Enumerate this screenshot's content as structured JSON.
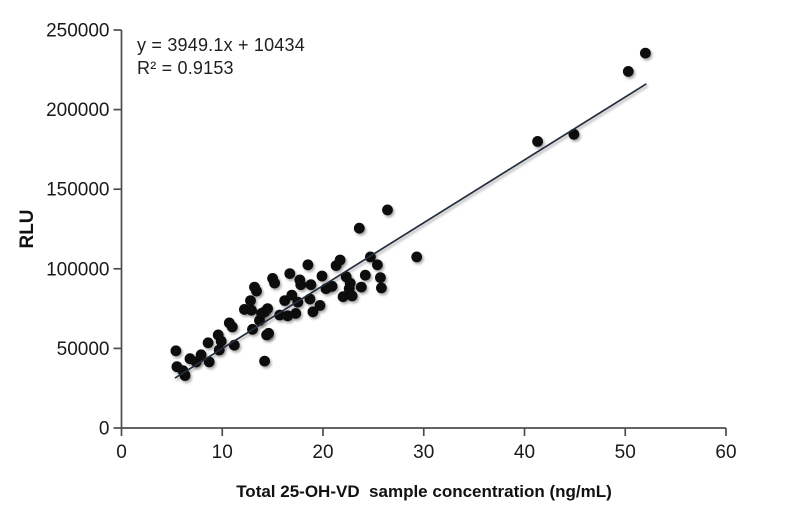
{
  "chart_data": {
    "type": "scatter",
    "title": "",
    "xlabel": "Total 25-OH-VD  sample concentration (ng/mL)",
    "ylabel": "RLU",
    "xlim": [
      0,
      60
    ],
    "ylim": [
      0,
      250000
    ],
    "x_ticks": [
      0,
      10,
      20,
      30,
      40,
      50,
      60
    ],
    "y_ticks": [
      0,
      50000,
      100000,
      150000,
      200000,
      250000
    ],
    "grid": false,
    "legend": "none",
    "point_color": "#0a0a0a",
    "axis_color": "#4d4d4d",
    "points": [
      [
        5.4,
        48500
      ],
      [
        5.5,
        38500
      ],
      [
        6.1,
        36000
      ],
      [
        6.3,
        33000
      ],
      [
        6.8,
        43500
      ],
      [
        7.4,
        41500
      ],
      [
        7.9,
        46000
      ],
      [
        8.6,
        53500
      ],
      [
        8.7,
        41500
      ],
      [
        9.6,
        58500
      ],
      [
        9.7,
        49000
      ],
      [
        9.9,
        54500
      ],
      [
        10.7,
        66000
      ],
      [
        11.0,
        63500
      ],
      [
        11.2,
        52000
      ],
      [
        12.2,
        74500
      ],
      [
        12.8,
        80000
      ],
      [
        12.9,
        74000
      ],
      [
        13.0,
        62000
      ],
      [
        13.2,
        88500
      ],
      [
        13.4,
        86000
      ],
      [
        13.7,
        67500
      ],
      [
        13.9,
        72000
      ],
      [
        14.2,
        42000
      ],
      [
        14.2,
        73000
      ],
      [
        14.4,
        58500
      ],
      [
        14.5,
        75000
      ],
      [
        14.6,
        59500
      ],
      [
        15.0,
        94000
      ],
      [
        15.2,
        91000
      ],
      [
        15.7,
        71000
      ],
      [
        16.2,
        80000
      ],
      [
        16.5,
        70500
      ],
      [
        16.7,
        97000
      ],
      [
        16.9,
        83500
      ],
      [
        17.3,
        72000
      ],
      [
        17.5,
        79000
      ],
      [
        17.7,
        93000
      ],
      [
        17.8,
        90000
      ],
      [
        18.5,
        102500
      ],
      [
        18.7,
        81000
      ],
      [
        18.8,
        90000
      ],
      [
        19.0,
        73000
      ],
      [
        19.7,
        77000
      ],
      [
        19.9,
        95500
      ],
      [
        20.3,
        87500
      ],
      [
        20.9,
        89000
      ],
      [
        21.3,
        102000
      ],
      [
        21.7,
        105500
      ],
      [
        22.0,
        82500
      ],
      [
        22.3,
        95000
      ],
      [
        22.6,
        87500
      ],
      [
        22.7,
        91000
      ],
      [
        22.9,
        83000
      ],
      [
        23.6,
        125500
      ],
      [
        23.8,
        88500
      ],
      [
        24.2,
        96000
      ],
      [
        24.7,
        107500
      ],
      [
        25.4,
        102500
      ],
      [
        25.7,
        94500
      ],
      [
        25.8,
        88000
      ],
      [
        26.4,
        137000
      ],
      [
        29.3,
        107500
      ],
      [
        41.3,
        180000
      ],
      [
        44.9,
        184500
      ],
      [
        50.3,
        224000
      ],
      [
        52.0,
        235500
      ]
    ],
    "trendline": {
      "type": "linear",
      "slope": 3949.1,
      "intercept": 10434,
      "x_start": 5.3,
      "x_end": 52.1,
      "color": "#232e3e"
    },
    "annotations": {
      "equation": "y = 3949.1x + 10434",
      "r_squared": "R² = 0.9153"
    }
  }
}
